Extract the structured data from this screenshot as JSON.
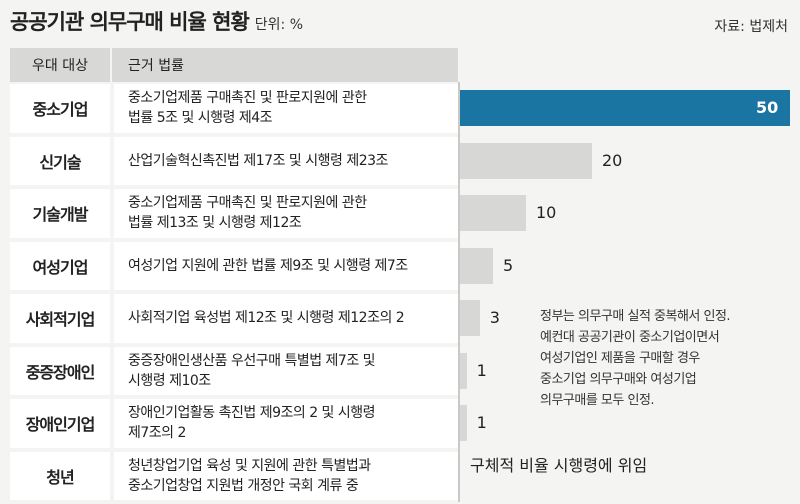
{
  "header": {
    "title": "공공기관 의무구매 비율 현황",
    "unit": "단위: %",
    "source": "자료: 법제처"
  },
  "columns": {
    "category": "우대 대상",
    "law": "근거 법률"
  },
  "rows": [
    {
      "category": "중소기업",
      "law": "중소기업제품 구매촉진 및 판로지원에 관한\n법률 5조 및 시행령 제4조"
    },
    {
      "category": "신기술",
      "law": "산업기술혁신촉진법 제17조 및 시행령 제23조"
    },
    {
      "category": "기술개발",
      "law": "중소기업제품 구매촉진 및 판로지원에 관한\n법률 제13조 및 시행령 제12조"
    },
    {
      "category": "여성기업",
      "law": "여성기업 지원에 관한 법률 제9조 및 시행령 제7조"
    },
    {
      "category": "사회적기업",
      "law": "사회적기업 육성법 제12조 및 시행령 제12조의 2"
    },
    {
      "category": "중증장애인",
      "law": "중증장애인생산품 우선구매 특별법 제7조 및\n시행령 제10조"
    },
    {
      "category": "장애인기업",
      "law": "장애인기업활동 촉진법 제9조의 2 및 시행령\n제7조의 2"
    },
    {
      "category": "청년",
      "law": "청년창업기업 육성 및 지원에 관한 특별법과\n중소기업창업 지원법 개정안 국회 계류 중"
    }
  ],
  "chart_data": {
    "type": "bar",
    "categories": [
      "중소기업",
      "신기술",
      "기술개발",
      "여성기업",
      "사회적기업",
      "중증장애인",
      "장애인기업"
    ],
    "values": [
      50,
      20,
      10,
      5,
      3,
      1,
      1
    ],
    "value_labels": [
      "50",
      "20",
      "10",
      "5",
      "3",
      "1",
      "1"
    ],
    "highlight_color": "#1b75a3",
    "bar_color": "#d7d7d5",
    "orientation": "horizontal"
  },
  "note": "정부는 의무구매 실적 중복해서 인정.\n예컨대 공공기관이 중소기업이면서\n여성기업인 제품을 구매할 경우\n중소기업 의무구매와 여성기업\n의무구매를 모두 인정.",
  "youth_note": "구체적 비율 시행령에 위임"
}
